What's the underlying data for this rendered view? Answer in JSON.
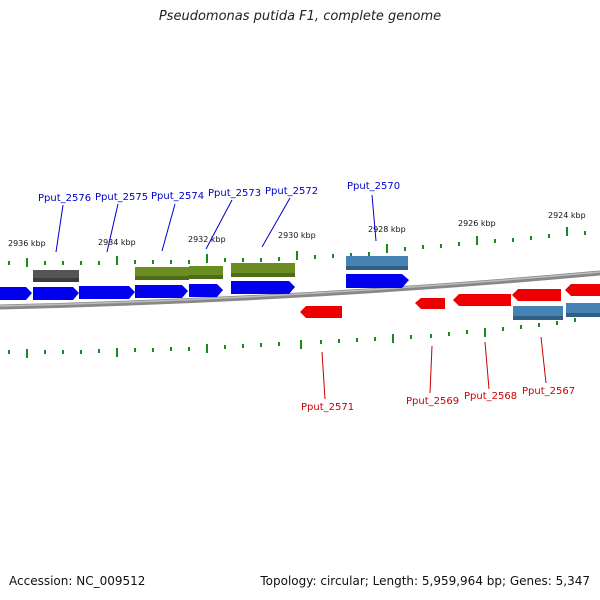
{
  "title": "Pseudomonas putida F1, complete genome",
  "footer": {
    "accession": "Accession: NC_009512",
    "topology": "Topology: circular; Length: 5,959,964 bp; Genes: 5,347"
  },
  "colors": {
    "forward_cds": "#0000ee",
    "reverse_cds": "#ee0000",
    "olive_feature": "#6b8e23",
    "steel_feature": "#4682b4",
    "grey_feature": "#555555",
    "tick": "#1a8a1a",
    "backbone": "#888888",
    "label_forward": "#0000cc",
    "label_reverse": "#cc0000"
  },
  "scale_labels": [
    "2936 kbp",
    "2934 kbp",
    "2932 kbp",
    "2930 kbp",
    "2928 kbp",
    "2926 kbp",
    "2924 kbp"
  ],
  "forward_labels": [
    "Pput_2576",
    "Pput_2575",
    "Pput_2574",
    "Pput_2573",
    "Pput_2572",
    "Pput_2570"
  ],
  "reverse_labels": [
    "Pput_2571",
    "Pput_2569",
    "Pput_2568",
    "Pput_2567"
  ]
}
